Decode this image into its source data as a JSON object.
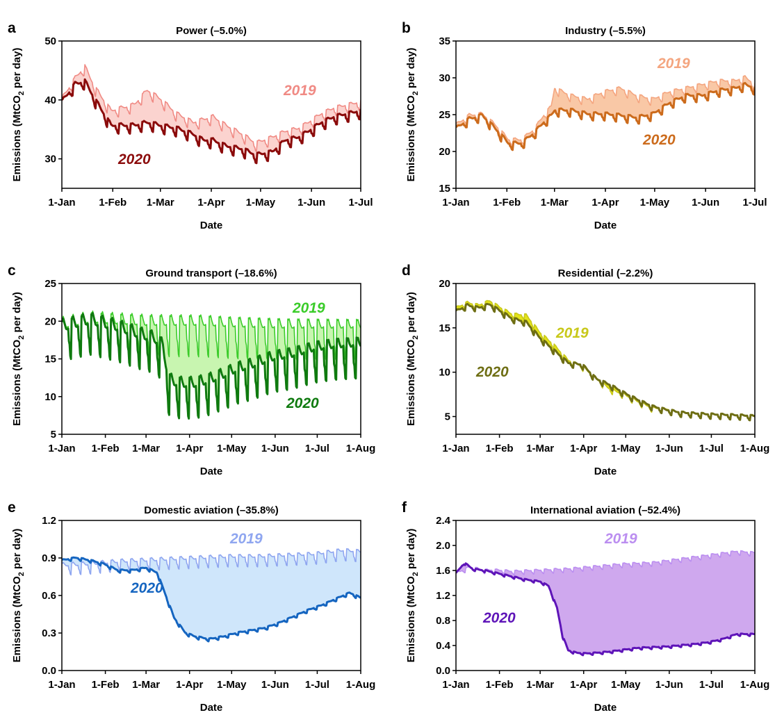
{
  "figure": {
    "ylabel_prefix": "Emissions (MtCO",
    "ylabel_sub": "2",
    "ylabel_suffix": " per day)",
    "xlabel": "Date"
  },
  "chart_data": [
    {
      "panel": "a",
      "title": "Power (–5.0%)",
      "type": "area",
      "xlabel": "Date",
      "ylabel": "Emissions (MtCO2 per day)",
      "xlim": [
        "1-Jan",
        "1-Jul"
      ],
      "xticks": [
        "1-Jan",
        "1-Feb",
        "1-Mar",
        "1-Apr",
        "1-May",
        "1-Jun",
        "1-Jul"
      ],
      "ylim": [
        25,
        50
      ],
      "yticks": [
        30,
        40,
        50
      ],
      "grid": false,
      "fill_color": "#fbd3cf",
      "series": [
        {
          "name": "2019",
          "color": "#f08a84",
          "x": [
            0,
            8,
            14,
            20,
            30,
            44,
            52,
            60,
            70,
            80,
            86,
            92,
            100,
            110,
            118,
            128,
            136,
            144,
            150,
            158,
            166,
            174,
            182
          ],
          "values": [
            40,
            43.5,
            45.5,
            42,
            38,
            39,
            41.5,
            40,
            37.5,
            36,
            36.5,
            37,
            35.5,
            34,
            32.5,
            33.5,
            34.5,
            35,
            36,
            37.5,
            38.5,
            39,
            39.5
          ],
          "amplitude": 1.4
        },
        {
          "name": "2020",
          "color": "#8b0b0b",
          "x": [
            0,
            8,
            14,
            20,
            30,
            44,
            52,
            60,
            70,
            80,
            86,
            92,
            100,
            110,
            118,
            128,
            136,
            144,
            150,
            158,
            166,
            174,
            182
          ],
          "values": [
            39.5,
            42.5,
            43,
            40,
            35.5,
            35.5,
            36,
            35.5,
            35,
            34,
            33,
            33,
            32,
            31.5,
            30.5,
            31,
            33,
            33.5,
            34.5,
            36,
            37,
            37.5,
            38
          ],
          "amplitude": 1.4
        }
      ]
    },
    {
      "panel": "b",
      "title": "Industry (–5.5%)",
      "type": "area",
      "xlabel": "Date",
      "ylabel": "Emissions (MtCO2 per day)",
      "xlim": [
        "1-Jan",
        "1-Jul"
      ],
      "xticks": [
        "1-Jan",
        "1-Feb",
        "1-Mar",
        "1-Apr",
        "1-May",
        "1-Jun",
        "1-Jul"
      ],
      "ylim": [
        15,
        35
      ],
      "yticks": [
        15,
        20,
        25,
        30,
        35
      ],
      "grid": false,
      "fill_color": "#f9c8a6",
      "series": [
        {
          "name": "2019",
          "color": "#f4a57f",
          "x": [
            0,
            8,
            16,
            24,
            32,
            40,
            48,
            54,
            58,
            60,
            70,
            80,
            90,
            100,
            110,
            120,
            130,
            140,
            150,
            160,
            170,
            176,
            182
          ],
          "values": [
            23.5,
            24.8,
            25,
            23.5,
            21.5,
            21.5,
            23,
            25,
            26,
            28.5,
            27.5,
            27,
            28,
            28.5,
            27.5,
            27,
            28,
            28.5,
            29,
            29.5,
            29.5,
            30,
            29
          ],
          "amplitude": 0.9
        },
        {
          "name": "2020",
          "color": "#cc6b1c",
          "x": [
            0,
            8,
            16,
            24,
            32,
            40,
            48,
            54,
            58,
            60,
            70,
            80,
            90,
            100,
            110,
            120,
            130,
            140,
            150,
            160,
            170,
            176,
            182
          ],
          "values": [
            23,
            24.3,
            24.8,
            23,
            21,
            21,
            22.5,
            24,
            24.8,
            25.5,
            25.5,
            25,
            25,
            24.8,
            24.5,
            25,
            26.5,
            27.5,
            27.5,
            28.2,
            28.5,
            29,
            28.5
          ],
          "amplitude": 0.9
        }
      ]
    },
    {
      "panel": "c",
      "title": "Ground transport (–18.6%)",
      "type": "area",
      "xlabel": "Date",
      "ylabel": "Emissions (MtCO2 per day)",
      "xlim": [
        "1-Jan",
        "1-Aug"
      ],
      "xticks": [
        "1-Jan",
        "1-Feb",
        "1-Mar",
        "1-Apr",
        "1-May",
        "1-Jun",
        "1-Jul",
        "1-Aug"
      ],
      "ylim": [
        5,
        25
      ],
      "yticks": [
        5,
        10,
        15,
        20,
        25
      ],
      "grid": false,
      "fill_color": "#c8f5b0",
      "series": [
        {
          "name": "2019",
          "color": "#3bcc2a",
          "x": [
            0,
            20,
            40,
            60,
            80,
            100,
            120,
            140,
            160,
            180,
            200,
            213
          ],
          "values": [
            18.8,
            19.6,
            19.4,
            19.2,
            19.2,
            19.2,
            19,
            18.9,
            18.8,
            18.8,
            18.8,
            18.8
          ],
          "amplitude": 4.4
        },
        {
          "name": "2020",
          "color": "#0f7a0f",
          "x": [
            0,
            20,
            40,
            56,
            66,
            72,
            76,
            84,
            95,
            105,
            115,
            125,
            135,
            150,
            165,
            180,
            195,
            213
          ],
          "values": [
            18.5,
            19.4,
            18.5,
            17.5,
            17,
            16,
            11.5,
            11,
            11,
            11.5,
            12.2,
            13,
            13.5,
            14.5,
            15,
            15.8,
            16.2,
            16.4
          ],
          "amplitude": 4.4
        }
      ]
    },
    {
      "panel": "d",
      "title": "Residential (–2.2%)",
      "type": "area",
      "xlabel": "Date",
      "ylabel": "Emissions (MtCO2 per day)",
      "xlim": [
        "1-Jan",
        "1-Aug"
      ],
      "xticks": [
        "1-Jan",
        "1-Feb",
        "1-Mar",
        "1-Apr",
        "1-May",
        "1-Jun",
        "1-Jul",
        "1-Aug"
      ],
      "ylim": [
        3,
        20
      ],
      "yticks": [
        5,
        10,
        15,
        20
      ],
      "grid": false,
      "fill_color": "#e3e31a",
      "series": [
        {
          "name": "2019",
          "color": "#c8c81a",
          "x": [
            0,
            8,
            16,
            24,
            32,
            40,
            50,
            60,
            70,
            80,
            90,
            100,
            110,
            120,
            130,
            140,
            150,
            160,
            180,
            200,
            213
          ],
          "values": [
            17.2,
            17.8,
            17.5,
            18,
            17.2,
            16.5,
            16.4,
            14.4,
            13,
            11.3,
            10.6,
            9.2,
            8,
            7.4,
            6.6,
            5.9,
            5.8,
            5.4,
            5.2,
            5.1,
            5
          ],
          "amplitude": 0.5
        },
        {
          "name": "2020",
          "color": "#6e6e14",
          "x": [
            0,
            8,
            16,
            24,
            32,
            40,
            50,
            60,
            70,
            80,
            90,
            100,
            110,
            120,
            130,
            140,
            150,
            160,
            180,
            200,
            213
          ],
          "values": [
            16.8,
            17.5,
            17.2,
            17.6,
            16.8,
            16,
            15.6,
            13.8,
            12.4,
            11,
            10.8,
            9.2,
            8.5,
            7.6,
            6.8,
            6.1,
            5.7,
            5.4,
            5.2,
            5.1,
            5
          ],
          "amplitude": 0.5
        }
      ]
    },
    {
      "panel": "e",
      "title": "Domestic aviation (–35.8%)",
      "type": "area",
      "xlabel": "Date",
      "ylabel": "Emissions (MtCO2 per day)",
      "xlim": [
        "1-Jan",
        "1-Aug"
      ],
      "xticks": [
        "1-Jan",
        "1-Feb",
        "1-Mar",
        "1-Apr",
        "1-May",
        "1-Jun",
        "1-Jul",
        "1-Aug"
      ],
      "ylim": [
        0,
        1.2
      ],
      "yticks": [
        "0.0",
        "0.3",
        "0.6",
        "0.9",
        "1.2"
      ],
      "grid": false,
      "fill_color": "#cfe6fb",
      "series": [
        {
          "name": "2019",
          "color": "#8fa6f0",
          "x": [
            0,
            20,
            40,
            60,
            80,
            100,
            120,
            140,
            160,
            180,
            200,
            213
          ],
          "values": [
            0.83,
            0.84,
            0.86,
            0.87,
            0.88,
            0.89,
            0.9,
            0.9,
            0.91,
            0.92,
            0.95,
            0.94
          ],
          "amplitude": 0.08
        },
        {
          "name": "2020",
          "color": "#1565c0",
          "x": [
            0,
            10,
            20,
            30,
            40,
            50,
            60,
            68,
            74,
            80,
            88,
            95,
            105,
            115,
            125,
            135,
            145,
            155,
            165,
            175,
            185,
            195,
            205,
            213
          ],
          "values": [
            0.88,
            0.9,
            0.88,
            0.85,
            0.8,
            0.8,
            0.82,
            0.78,
            0.6,
            0.42,
            0.3,
            0.27,
            0.25,
            0.27,
            0.3,
            0.32,
            0.34,
            0.38,
            0.43,
            0.48,
            0.52,
            0.57,
            0.62,
            0.58
          ],
          "amplitude": 0.02
        }
      ]
    },
    {
      "panel": "f",
      "title": "International aviation (–52.4%)",
      "type": "area",
      "xlabel": "Date",
      "ylabel": "Emissions (MtCO2 per day)",
      "xlim": [
        "1-Jan",
        "1-Aug"
      ],
      "xticks": [
        "1-Jan",
        "1-Feb",
        "1-Mar",
        "1-Apr",
        "1-May",
        "1-Jun",
        "1-Jul",
        "1-Aug"
      ],
      "ylim": [
        0,
        2.4
      ],
      "yticks": [
        "0.0",
        "0.4",
        "0.8",
        "1.2",
        "1.6",
        "2.0",
        "2.4"
      ],
      "grid": false,
      "fill_color": "#cfa8ee",
      "series": [
        {
          "name": "2019",
          "color": "#bb8ef0",
          "x": [
            0,
            10,
            20,
            30,
            40,
            60,
            80,
            100,
            120,
            140,
            160,
            180,
            200,
            213
          ],
          "values": [
            1.55,
            1.65,
            1.6,
            1.6,
            1.58,
            1.6,
            1.62,
            1.66,
            1.7,
            1.72,
            1.78,
            1.84,
            1.9,
            1.88
          ],
          "amplitude": 0.06
        },
        {
          "name": "2020",
          "color": "#5e14b8",
          "x": [
            0,
            6,
            12,
            20,
            30,
            40,
            50,
            60,
            66,
            72,
            76,
            80,
            86,
            92,
            100,
            110,
            120,
            130,
            140,
            150,
            160,
            170,
            180,
            190,
            200,
            213
          ],
          "values": [
            1.55,
            1.72,
            1.62,
            1.6,
            1.55,
            1.5,
            1.45,
            1.42,
            1.35,
            1.0,
            0.55,
            0.32,
            0.28,
            0.27,
            0.28,
            0.3,
            0.33,
            0.36,
            0.37,
            0.38,
            0.4,
            0.42,
            0.45,
            0.5,
            0.58,
            0.58
          ],
          "amplitude": 0.03
        }
      ]
    }
  ]
}
